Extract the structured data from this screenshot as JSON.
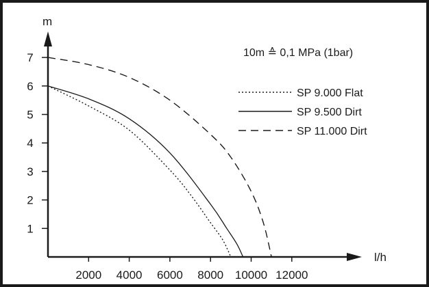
{
  "chart_data": {
    "type": "line",
    "title": "",
    "xlabel": "l/h",
    "ylabel": "m",
    "annotation": "10m ≙ 0,1 MPa (1bar)",
    "xlim": [
      0,
      15000
    ],
    "ylim": [
      0,
      7.7
    ],
    "x_ticks": [
      2000,
      4000,
      6000,
      8000,
      10000,
      12000
    ],
    "x_tick_labels": [
      "2000",
      "4000",
      "6000",
      "8000",
      "10000",
      "12000"
    ],
    "y_ticks": [
      1,
      2,
      3,
      4,
      5,
      6,
      7
    ],
    "y_tick_labels": [
      "1",
      "2",
      "3",
      "4",
      "5",
      "6",
      "7"
    ],
    "legend_position": "top-right",
    "grid": false,
    "series": [
      {
        "name": "SP 9.000 Flat",
        "style": "dotted",
        "x": [
          0,
          2000,
          4000,
          6000,
          7000,
          8000,
          8600,
          9000
        ],
        "y": [
          6.0,
          5.3,
          4.45,
          3.05,
          2.2,
          1.2,
          0.6,
          0.0
        ]
      },
      {
        "name": "SP 9.500 Dirt",
        "style": "solid",
        "x": [
          0,
          2000,
          4000,
          6000,
          8000,
          8800,
          9300,
          9600
        ],
        "y": [
          6.0,
          5.55,
          4.85,
          3.65,
          1.85,
          1.0,
          0.45,
          0.0
        ]
      },
      {
        "name": "SP 11.000 Dirt",
        "style": "dashed",
        "x": [
          0,
          2000,
          4000,
          6000,
          8000,
          9000,
          10000,
          10600,
          11000
        ],
        "y": [
          7.0,
          6.75,
          6.3,
          5.5,
          4.3,
          3.5,
          2.3,
          1.2,
          0.0
        ]
      }
    ]
  }
}
